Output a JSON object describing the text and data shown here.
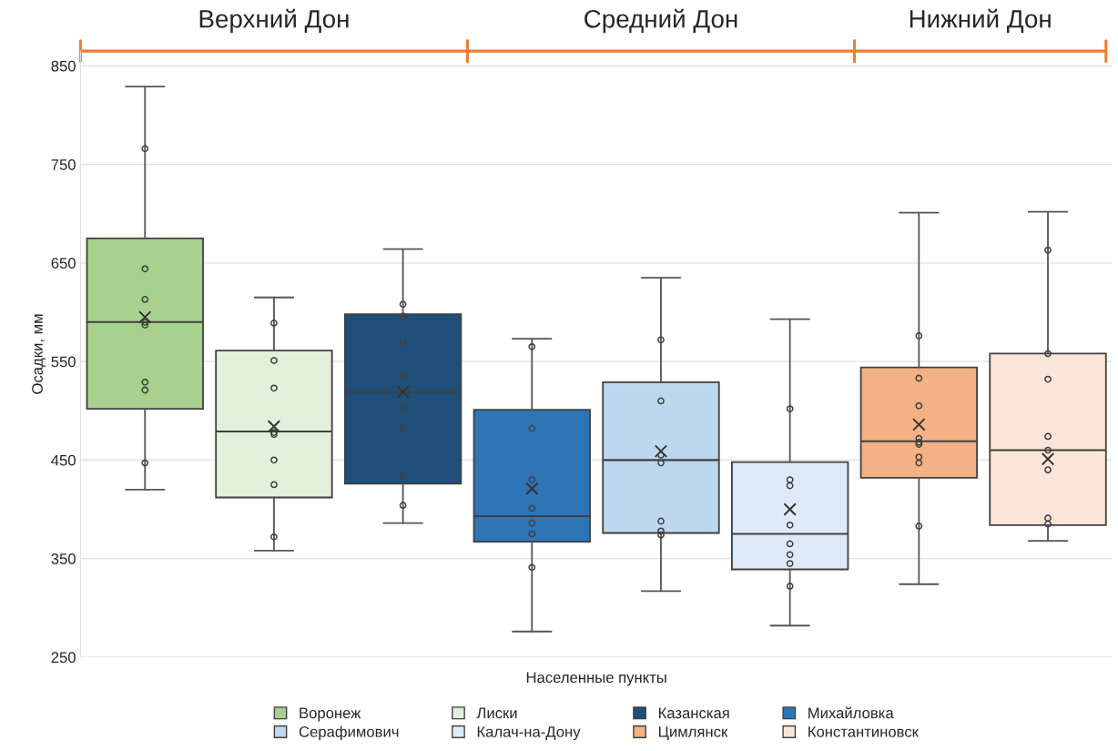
{
  "chart_data": {
    "type": "box",
    "xlabel": "Населенные пункты",
    "ylabel": "Осадки, мм",
    "annotations": [
      "Верхний Дон",
      "Средний Дон",
      "Нижний Дон"
    ],
    "categories": [
      null,
      null,
      null,
      null,
      null,
      null,
      null,
      null
    ],
    "series": [
      {
        "name": "Воронеж",
        "color": "#a9d18e",
        "boxes": [
          {
            "low": 420,
            "q1": 502,
            "median": 590,
            "q3": 675,
            "high": 829,
            "mean": 595,
            "outliers": [
              766,
              644,
              613,
              590,
              587,
              529,
              521,
              447
            ]
          },
          null,
          null,
          null,
          null,
          null,
          null,
          null
        ]
      },
      {
        "name": "Лиски",
        "color": "#e2efda",
        "boxes": [
          null,
          {
            "low": 358,
            "q1": 412,
            "median": 479,
            "q3": 561,
            "high": 615,
            "mean": 484,
            "outliers": [
              589,
              551,
              523,
              478,
              476,
              450,
              425,
              372
            ]
          },
          null,
          null,
          null,
          null,
          null,
          null
        ]
      },
      {
        "name": "Казанская",
        "color": "#1f4e79",
        "boxes": [
          null,
          null,
          {
            "low": 386,
            "q1": 426,
            "median": 519,
            "q3": 598,
            "high": 664,
            "mean": 519,
            "outliers": [
              608,
              596,
              570,
              536,
              502,
              482,
              433,
              404
            ]
          },
          null,
          null,
          null,
          null,
          null
        ]
      },
      {
        "name": "Михайловка",
        "color": "#2e75b6",
        "boxes": [
          null,
          null,
          null,
          {
            "low": 276,
            "q1": 367,
            "median": 393,
            "q3": 501,
            "high": 573,
            "mean": 421,
            "outliers": [
              565,
              482,
              430,
              401,
              386,
              375,
              341
            ]
          },
          null,
          null,
          null,
          null
        ]
      },
      {
        "name": "Серафимович",
        "color": "#bdd7ee",
        "boxes": [
          null,
          null,
          null,
          null,
          {
            "low": 317,
            "q1": 376,
            "median": 450,
            "q3": 529,
            "high": 635,
            "mean": 459,
            "outliers": [
              572,
              510,
              455,
              447,
              388,
              378,
              374
            ]
          },
          null,
          null,
          null
        ]
      },
      {
        "name": "Калач-на-Дону",
        "color": "#deebf7",
        "boxes": [
          null,
          null,
          null,
          null,
          null,
          {
            "low": 282,
            "q1": 339,
            "median": 375,
            "q3": 448,
            "high": 593,
            "mean": 400,
            "outliers": [
              502,
              430,
              424,
              384,
              365,
              354,
              345,
              322
            ]
          },
          null,
          null
        ]
      },
      {
        "name": "Цимлянск",
        "color": "#f4b183",
        "boxes": [
          null,
          null,
          null,
          null,
          null,
          null,
          {
            "low": 324,
            "q1": 432,
            "median": 469,
            "q3": 544,
            "high": 701,
            "mean": 486,
            "outliers": [
              576,
              533,
              505,
              472,
              468,
              466,
              453,
              447,
              383
            ]
          },
          null
        ]
      },
      {
        "name": "Константиновск",
        "color": "#fbe5d6",
        "boxes": [
          null,
          null,
          null,
          null,
          null,
          null,
          null,
          {
            "low": 368,
            "q1": 384,
            "median": 460,
            "q3": 558,
            "high": 702,
            "mean": 451,
            "outliers": [
              663,
              558,
              532,
              474,
              460,
              440,
              391,
              385
            ]
          }
        ]
      }
    ],
    "ylim": [
      250,
      865
    ],
    "yticks": [
      250,
      350,
      450,
      550,
      650,
      750,
      850
    ],
    "grid": "y",
    "legend": "bottom",
    "marker": "circle"
  }
}
